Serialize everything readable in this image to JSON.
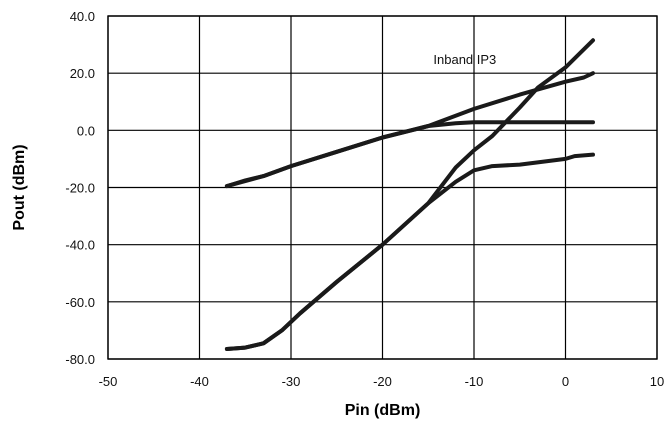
{
  "chart_data": {
    "type": "line",
    "xlabel": "Pin (dBm)",
    "ylabel": "Pout (dBm)",
    "xlim": [
      -50,
      10
    ],
    "ylim": [
      -80,
      40
    ],
    "x_ticks": [
      -50,
      -40,
      -30,
      -20,
      -10,
      0,
      10
    ],
    "y_ticks": [
      -80,
      -60,
      -40,
      -20,
      0,
      20,
      40
    ],
    "x_tick_labels": [
      "-50",
      "-40",
      "-30",
      "-20",
      "-10",
      "0",
      "10"
    ],
    "y_tick_labels": [
      "-80.0",
      "-60.0",
      "-40.0",
      "-20.0",
      "0.0",
      "20.0",
      "40.0"
    ],
    "grid": true,
    "legend": "none",
    "annotations": [
      {
        "text": "Inband IP3",
        "x": -11,
        "y": 25
      }
    ],
    "series": [
      {
        "points": [
          [
            -37,
            -19.5
          ],
          [
            -35,
            -17.5
          ],
          [
            -33,
            -16
          ],
          [
            -30,
            -12.5
          ],
          [
            -25,
            -7.5
          ],
          [
            -20,
            -2.5
          ],
          [
            -15,
            1.5
          ],
          [
            -12,
            2.5
          ],
          [
            -10,
            2.8
          ],
          [
            -5,
            2.8
          ],
          [
            0,
            2.8
          ],
          [
            3,
            2.8
          ]
        ]
      },
      {
        "points": [
          [
            -37,
            -19.5
          ],
          [
            -33,
            -16
          ],
          [
            -30,
            -12.5
          ],
          [
            -25,
            -7.5
          ],
          [
            -20,
            -2.5
          ],
          [
            -15,
            1.5
          ],
          [
            -10,
            7.5
          ],
          [
            -5,
            12.5
          ],
          [
            0,
            17
          ],
          [
            2,
            18.5
          ],
          [
            3,
            20
          ]
        ]
      },
      {
        "points": [
          [
            -37,
            -76.5
          ],
          [
            -35,
            -76
          ],
          [
            -33,
            -74.5
          ],
          [
            -31,
            -70
          ],
          [
            -29,
            -64
          ],
          [
            -25,
            -53
          ],
          [
            -20,
            -40
          ],
          [
            -15,
            -25.5
          ],
          [
            -12,
            -18
          ],
          [
            -10,
            -14
          ],
          [
            -8,
            -12.5
          ],
          [
            -5,
            -12
          ],
          [
            0,
            -10
          ],
          [
            1,
            -9
          ],
          [
            3,
            -8.5
          ]
        ]
      },
      {
        "points": [
          [
            -37,
            -76.5
          ],
          [
            -35,
            -76
          ],
          [
            -33,
            -74.5
          ],
          [
            -31,
            -70
          ],
          [
            -29,
            -64
          ],
          [
            -25,
            -53
          ],
          [
            -20,
            -40
          ],
          [
            -15,
            -25.5
          ],
          [
            -12,
            -13
          ],
          [
            -10,
            -7
          ],
          [
            -8,
            -2
          ],
          [
            -5,
            8
          ],
          [
            -3,
            15
          ],
          [
            0,
            22
          ],
          [
            3,
            31.5
          ]
        ]
      }
    ]
  }
}
